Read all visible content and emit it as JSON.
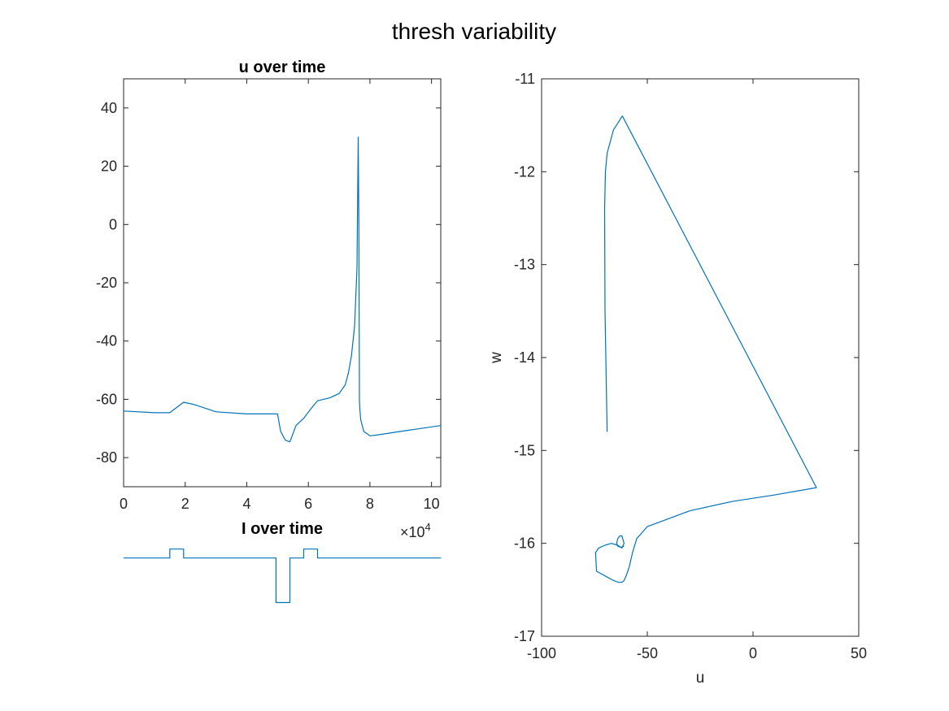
{
  "figure": {
    "suptitle": "thresh variability"
  },
  "chart_data": [
    {
      "id": "u_time",
      "type": "line",
      "title": "u over time",
      "xlabel": "",
      "ylabel": "",
      "xlim": [
        0,
        10.3
      ],
      "ylim": [
        -90,
        50
      ],
      "x_exponent_label": "×10",
      "x_exponent": "4",
      "xticks": [
        0,
        2,
        4,
        6,
        8,
        10
      ],
      "yticks": [
        -80,
        -60,
        -40,
        -20,
        0,
        20,
        40
      ],
      "x": [
        0,
        1,
        1.5,
        1.95,
        2.3,
        3,
        4,
        5,
        5.1,
        5.25,
        5.4,
        5.6,
        5.85,
        6.1,
        6.3,
        6.7,
        7.0,
        7.2,
        7.3,
        7.4,
        7.5,
        7.58,
        7.62,
        7.64,
        7.66,
        7.67,
        7.7,
        7.8,
        8.0,
        8.2,
        9.0,
        10.3
      ],
      "y": [
        -64,
        -64.6,
        -64.6,
        -61,
        -61.8,
        -64.3,
        -65,
        -65,
        -71,
        -74,
        -74.6,
        -69,
        -66.5,
        -63,
        -60.5,
        -59.5,
        -58,
        -55,
        -51,
        -45,
        -35,
        -15,
        30,
        0,
        -60,
        -63,
        -67,
        -71,
        -72.5,
        -72.3,
        -71,
        -69
      ]
    },
    {
      "id": "i_time",
      "type": "line",
      "title": "I over time",
      "xlabel": "",
      "ylabel": "",
      "xlim": [
        0,
        10.3
      ],
      "ylim": [
        -2.2,
        0.9
      ],
      "x": [
        0,
        1.5,
        1.5,
        1.95,
        1.95,
        4.95,
        4.95,
        5.4,
        5.4,
        5.85,
        5.85,
        6.3,
        6.3,
        10.3
      ],
      "y": [
        0,
        0,
        0.4,
        0.4,
        0,
        0,
        -2,
        -2,
        0,
        0,
        0.4,
        0.4,
        0,
        0
      ]
    },
    {
      "id": "phase",
      "type": "line",
      "title": "",
      "xlabel": "u",
      "ylabel": "w",
      "xlim": [
        -100,
        50
      ],
      "ylim": [
        -17,
        -11
      ],
      "xticks": [
        -100,
        -50,
        0,
        50
      ],
      "yticks": [
        -17,
        -16,
        -15,
        -14,
        -13,
        -12,
        -11
      ],
      "x": [
        -69,
        -70,
        -70.2,
        -69.8,
        -69,
        -66,
        -61.8,
        30,
        10,
        -10,
        -30,
        -50,
        -55,
        -57,
        -58.5,
        -60,
        -61,
        -62,
        -63.5,
        -66,
        -70,
        -74,
        -74.5,
        -73,
        -70,
        -67,
        -64,
        -62,
        -61,
        -62,
        -63,
        -64,
        -64.5,
        -64,
        -63,
        -62,
        -61
      ],
      "y": [
        -14.8,
        -13.5,
        -12.4,
        -12.0,
        -11.8,
        -11.55,
        -11.4,
        -15.4,
        -15.48,
        -15.55,
        -15.65,
        -15.82,
        -15.95,
        -16.1,
        -16.25,
        -16.35,
        -16.4,
        -16.42,
        -16.42,
        -16.4,
        -16.35,
        -16.3,
        -16.1,
        -16.05,
        -16.02,
        -16.0,
        -16.02,
        -16.05,
        -16.0,
        -15.92,
        -15.92,
        -15.95,
        -16.0,
        -16.03,
        -16.04,
        -16.04,
        -16.03
      ]
    }
  ]
}
